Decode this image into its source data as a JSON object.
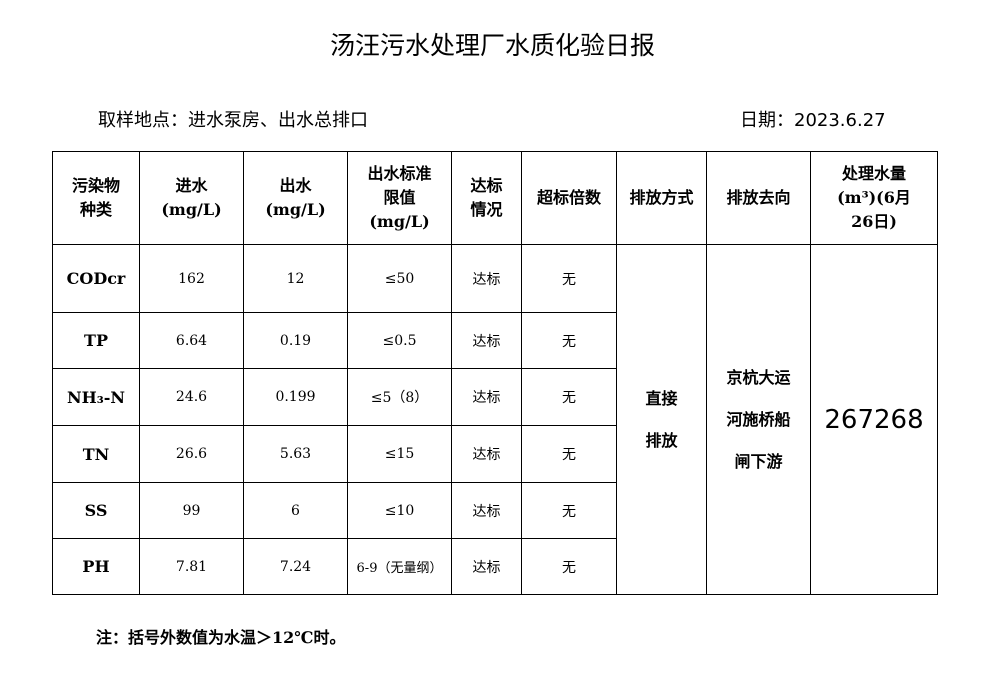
{
  "title": "汤汪污水处理厂水质化验日报",
  "location": "取样地点：进水泵房、出水总排口",
  "date": "日期：2023.6.27",
  "headers": [
    "污染物种类",
    "进水(mg/L)",
    "出水(mg/L)",
    "出水标准限值(mg/L)",
    "达标情况",
    "超标倍数",
    "排放方式",
    "排放去向",
    "处理水量(m³)(6月26日)"
  ],
  "rows": [
    {
      "pollutant": "CODcr",
      "inflow": "162",
      "outflow": "12",
      "limit": "≤50",
      "status": "达标",
      "exceed": "无"
    },
    {
      "pollutant": "TP",
      "inflow": "6.64",
      "outflow": "0.19",
      "limit": "≤0.5",
      "status": "达标",
      "exceed": "无"
    },
    {
      "pollutant": "NH₃-N",
      "inflow": "24.6",
      "outflow": "0.199",
      "limit": "≤5（8）",
      "status": "达标",
      "exceed": "无"
    },
    {
      "pollutant": "TN",
      "inflow": "26.6",
      "outflow": "5.63",
      "limit": "≤15",
      "status": "达标",
      "exceed": "无"
    },
    {
      "pollutant": "SS",
      "inflow": "99",
      "outflow": "6",
      "limit": "≤10",
      "status": "达标",
      "exceed": "无"
    },
    {
      "pollutant": "PH",
      "inflow": "7.81",
      "outflow": "7.24",
      "limit": "6-9（无量纲）",
      "status": "达标",
      "exceed": "无"
    }
  ],
  "discharge_method": "直接排放",
  "discharge_destination": "京杭大运河施桥船闸下游",
  "treated_volume": "267268",
  "note": "注：括号外数值为水温＞12℃时。"
}
